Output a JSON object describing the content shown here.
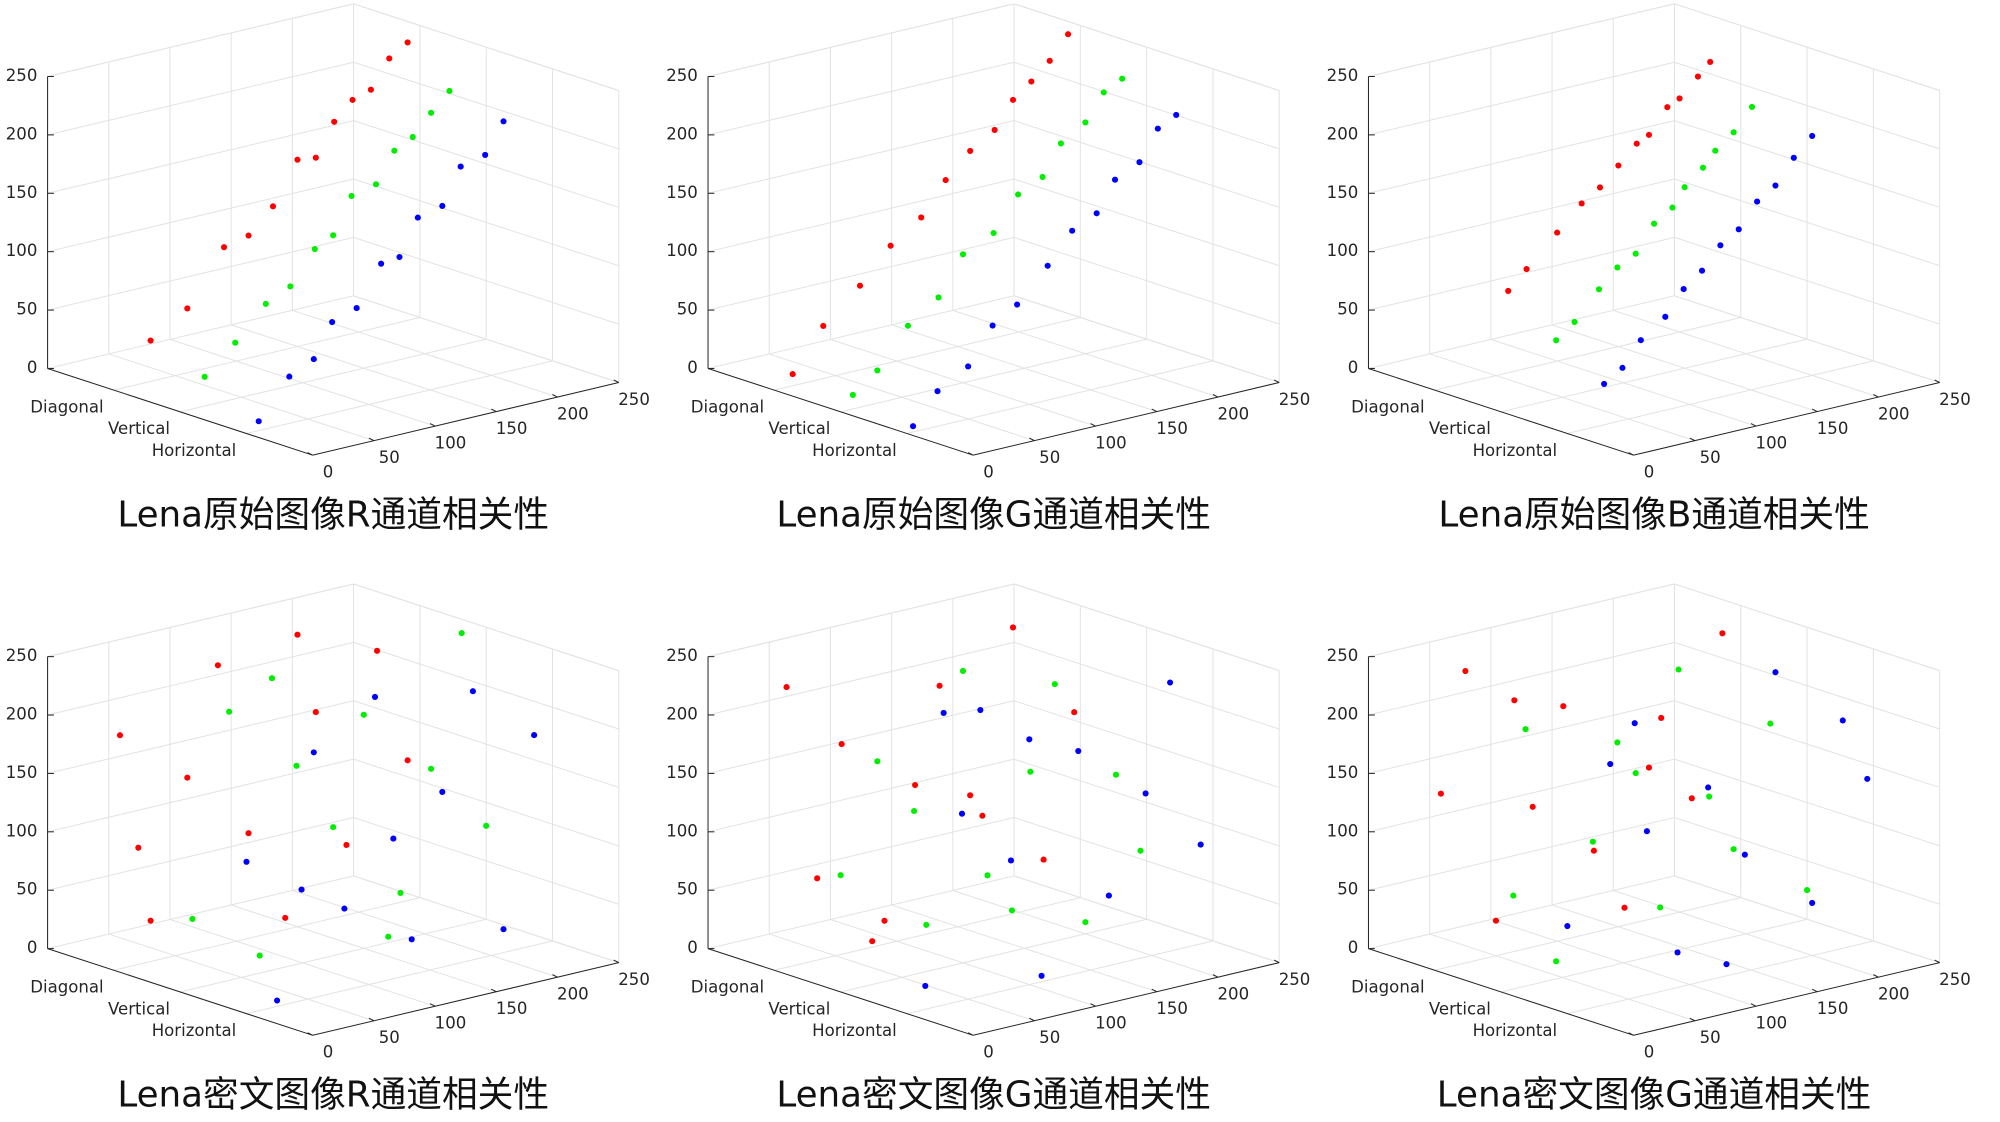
{
  "chart_data": [
    {
      "type": "scatter3d",
      "title": "Lena原始图像R通道相关性",
      "categories": [
        "Diagonal",
        "Vertical",
        "Horizontal"
      ],
      "xlim": [
        0,
        250
      ],
      "xticks": [
        0,
        50,
        100,
        150,
        200,
        250
      ],
      "ylim": [
        0,
        250
      ],
      "yticks": [
        0,
        50,
        100,
        150,
        200,
        250
      ],
      "grid": true,
      "series": [
        {
          "color": "#ff0000",
          "x": [
            30,
            60,
            90,
            110,
            130,
            150,
            165,
            180,
            195,
            210,
            225,
            240
          ],
          "values": [
            35,
            55,
            100,
            105,
            125,
            160,
            158,
            185,
            200,
            205,
            228,
            238
          ]
        },
        {
          "color": "#00ee00",
          "x": [
            20,
            45,
            70,
            90,
            110,
            125,
            140,
            160,
            175,
            190,
            205,
            220
          ],
          "values": [
            25,
            48,
            75,
            85,
            112,
            120,
            150,
            155,
            180,
            188,
            205,
            220
          ]
        },
        {
          "color": "#0000ff",
          "x": [
            10,
            35,
            55,
            70,
            90,
            110,
            125,
            140,
            160,
            175,
            195,
            210
          ],
          "values": [
            8,
            40,
            50,
            78,
            85,
            118,
            120,
            150,
            155,
            185,
            190,
            215
          ]
        }
      ]
    },
    {
      "type": "scatter3d",
      "title": "Lena原始图像G通道相关性",
      "categories": [
        "Diagonal",
        "Vertical",
        "Horizontal"
      ],
      "xlim": [
        0,
        250
      ],
      "xticks": [
        0,
        50,
        100,
        150,
        200,
        250
      ],
      "ylim": [
        0,
        250
      ],
      "yticks": [
        0,
        50,
        100,
        150,
        200,
        250
      ],
      "grid": true,
      "series": [
        {
          "color": "#ff0000",
          "x": [
            15,
            40,
            70,
            95,
            120,
            140,
            160,
            180,
            195,
            210,
            225,
            240
          ],
          "values": [
            10,
            45,
            72,
            100,
            118,
            145,
            165,
            178,
            200,
            212,
            226,
            245
          ]
        },
        {
          "color": "#00ee00",
          "x": [
            10,
            30,
            55,
            80,
            100,
            125,
            145,
            165,
            180,
            200,
            215,
            230
          ],
          "values": [
            12,
            28,
            60,
            78,
            110,
            122,
            150,
            160,
            185,
            198,
            220,
            228
          ]
        },
        {
          "color": "#0000ff",
          "x": [
            5,
            25,
            50,
            70,
            90,
            115,
            135,
            155,
            170,
            190,
            205,
            220
          ],
          "values": [
            5,
            30,
            45,
            75,
            88,
            115,
            140,
            150,
            175,
            185,
            210,
            218
          ]
        }
      ]
    },
    {
      "type": "scatter3d",
      "title": "Lena原始图像B通道相关性",
      "categories": [
        "Diagonal",
        "Vertical",
        "Horizontal"
      ],
      "xlim": [
        0,
        250
      ],
      "xticks": [
        0,
        50,
        100,
        150,
        200,
        250
      ],
      "ylim": [
        0,
        250
      ],
      "yticks": [
        0,
        50,
        100,
        150,
        200,
        250
      ],
      "grid": true,
      "series": [
        {
          "color": "#ff0000",
          "x": [
            60,
            75,
            100,
            120,
            135,
            150,
            165,
            175,
            190,
            200,
            215,
            225
          ],
          "values": [
            70,
            85,
            110,
            130,
            140,
            155,
            170,
            175,
            195,
            200,
            215,
            225
          ]
        },
        {
          "color": "#00ee00",
          "x": [
            45,
            60,
            80,
            95,
            110,
            125,
            140,
            150,
            165,
            175,
            190,
            205
          ],
          "values": [
            50,
            62,
            85,
            100,
            108,
            130,
            140,
            155,
            168,
            180,
            192,
            210
          ]
        },
        {
          "color": "#0000ff",
          "x": [
            30,
            45,
            60,
            80,
            95,
            110,
            125,
            140,
            155,
            170,
            185,
            200
          ],
          "values": [
            35,
            45,
            65,
            80,
            100,
            112,
            130,
            140,
            160,
            170,
            190,
            205
          ]
        }
      ]
    },
    {
      "type": "scatter3d",
      "title": "Lena密文图像R通道相关性",
      "categories": [
        "Diagonal",
        "Vertical",
        "Horizontal"
      ],
      "xlim": [
        0,
        250
      ],
      "xticks": [
        0,
        50,
        100,
        150,
        200,
        250
      ],
      "ylim": [
        0,
        250
      ],
      "yticks": [
        0,
        50,
        100,
        150,
        200,
        250
      ],
      "grid": true,
      "series": [
        {
          "color": "#ff0000",
          "x": [
            5,
            30,
            60,
            85,
            110,
            140,
            165,
            190,
            215,
            240,
            20,
            150
          ],
          "values": [
            200,
            35,
            150,
            240,
            90,
            10,
            180,
            60,
            220,
            120,
            100,
            250
          ]
        },
        {
          "color": "#00ee00",
          "x": [
            10,
            40,
            65,
            95,
            125,
            150,
            180,
            205,
            230,
            250,
            75,
            170
          ],
          "values": [
            60,
            230,
            15,
            170,
            110,
            200,
            40,
            140,
            250,
            80,
            250,
            5
          ]
        },
        {
          "color": "#0000ff",
          "x": [
            0,
            25,
            55,
            80,
            105,
            135,
            160,
            185,
            210,
            235,
            120,
            45
          ],
          "values": [
            130,
            5,
            210,
            70,
            245,
            30,
            150,
            230,
            20,
            180,
            120,
            95
          ]
        }
      ]
    },
    {
      "type": "scatter3d",
      "title": "Lena密文图像G通道相关性",
      "categories": [
        "Diagonal",
        "Vertical",
        "Horizontal"
      ],
      "xlim": [
        0,
        250
      ],
      "xticks": [
        0,
        50,
        100,
        150,
        200,
        250
      ],
      "ylim": [
        0,
        250
      ],
      "yticks": [
        0,
        50,
        100,
        150,
        200,
        250
      ],
      "grid": true,
      "series": [
        {
          "color": "#ff0000",
          "x": [
            10,
            35,
            55,
            90,
            115,
            135,
            170,
            195,
            220,
            245,
            80,
            160
          ],
          "values": [
            240,
            70,
            180,
            20,
            130,
            210,
            90,
            245,
            40,
            160,
            5,
            110
          ]
        },
        {
          "color": "#00ee00",
          "x": [
            0,
            30,
            70,
            100,
            120,
            155,
            175,
            200,
            225,
            245,
            60,
            140
          ],
          "values": [
            100,
            190,
            40,
            250,
            70,
            150,
            220,
            10,
            130,
            60,
            140,
            35
          ]
        },
        {
          "color": "#0000ff",
          "x": [
            15,
            45,
            60,
            85,
            110,
            140,
            165,
            195,
            215,
            240,
            100,
            30
          ],
          "values": [
            20,
            160,
            245,
            110,
            5,
            190,
            60,
            140,
            230,
            85,
            210,
            250
          ]
        }
      ]
    },
    {
      "type": "scatter3d",
      "title": "Lena密文图像G通道相关性",
      "categories": [
        "Diagonal",
        "Vertical",
        "Horizontal"
      ],
      "xlim": [
        0,
        250
      ],
      "xticks": [
        0,
        50,
        100,
        150,
        200,
        250
      ],
      "ylim": [
        0,
        250
      ],
      "yticks": [
        0,
        50,
        100,
        150,
        200,
        250
      ],
      "grid": true,
      "series": [
        {
          "color": "#ff0000",
          "x": [
            5,
            25,
            50,
            80,
            105,
            130,
            155,
            185,
            210,
            235,
            65,
            175
          ],
          "values": [
            150,
            250,
            30,
            120,
            200,
            70,
            15,
            170,
            95,
            230,
            215,
            130
          ]
        },
        {
          "color": "#00ee00",
          "x": [
            20,
            45,
            75,
            95,
            130,
            145,
            170,
            190,
            220,
            250,
            110,
            10
          ],
          "values": [
            220,
            15,
            110,
            190,
            40,
            240,
            125,
            75,
            175,
            25,
            160,
            80
          ]
        },
        {
          "color": "#0000ff",
          "x": [
            0,
            35,
            65,
            90,
            115,
            145,
            170,
            200,
            225,
            245,
            130,
            55
          ],
          "values": [
            75,
            205,
            140,
            30,
            165,
            100,
            250,
            45,
            195,
            140,
            10,
            235
          ]
        }
      ]
    }
  ]
}
